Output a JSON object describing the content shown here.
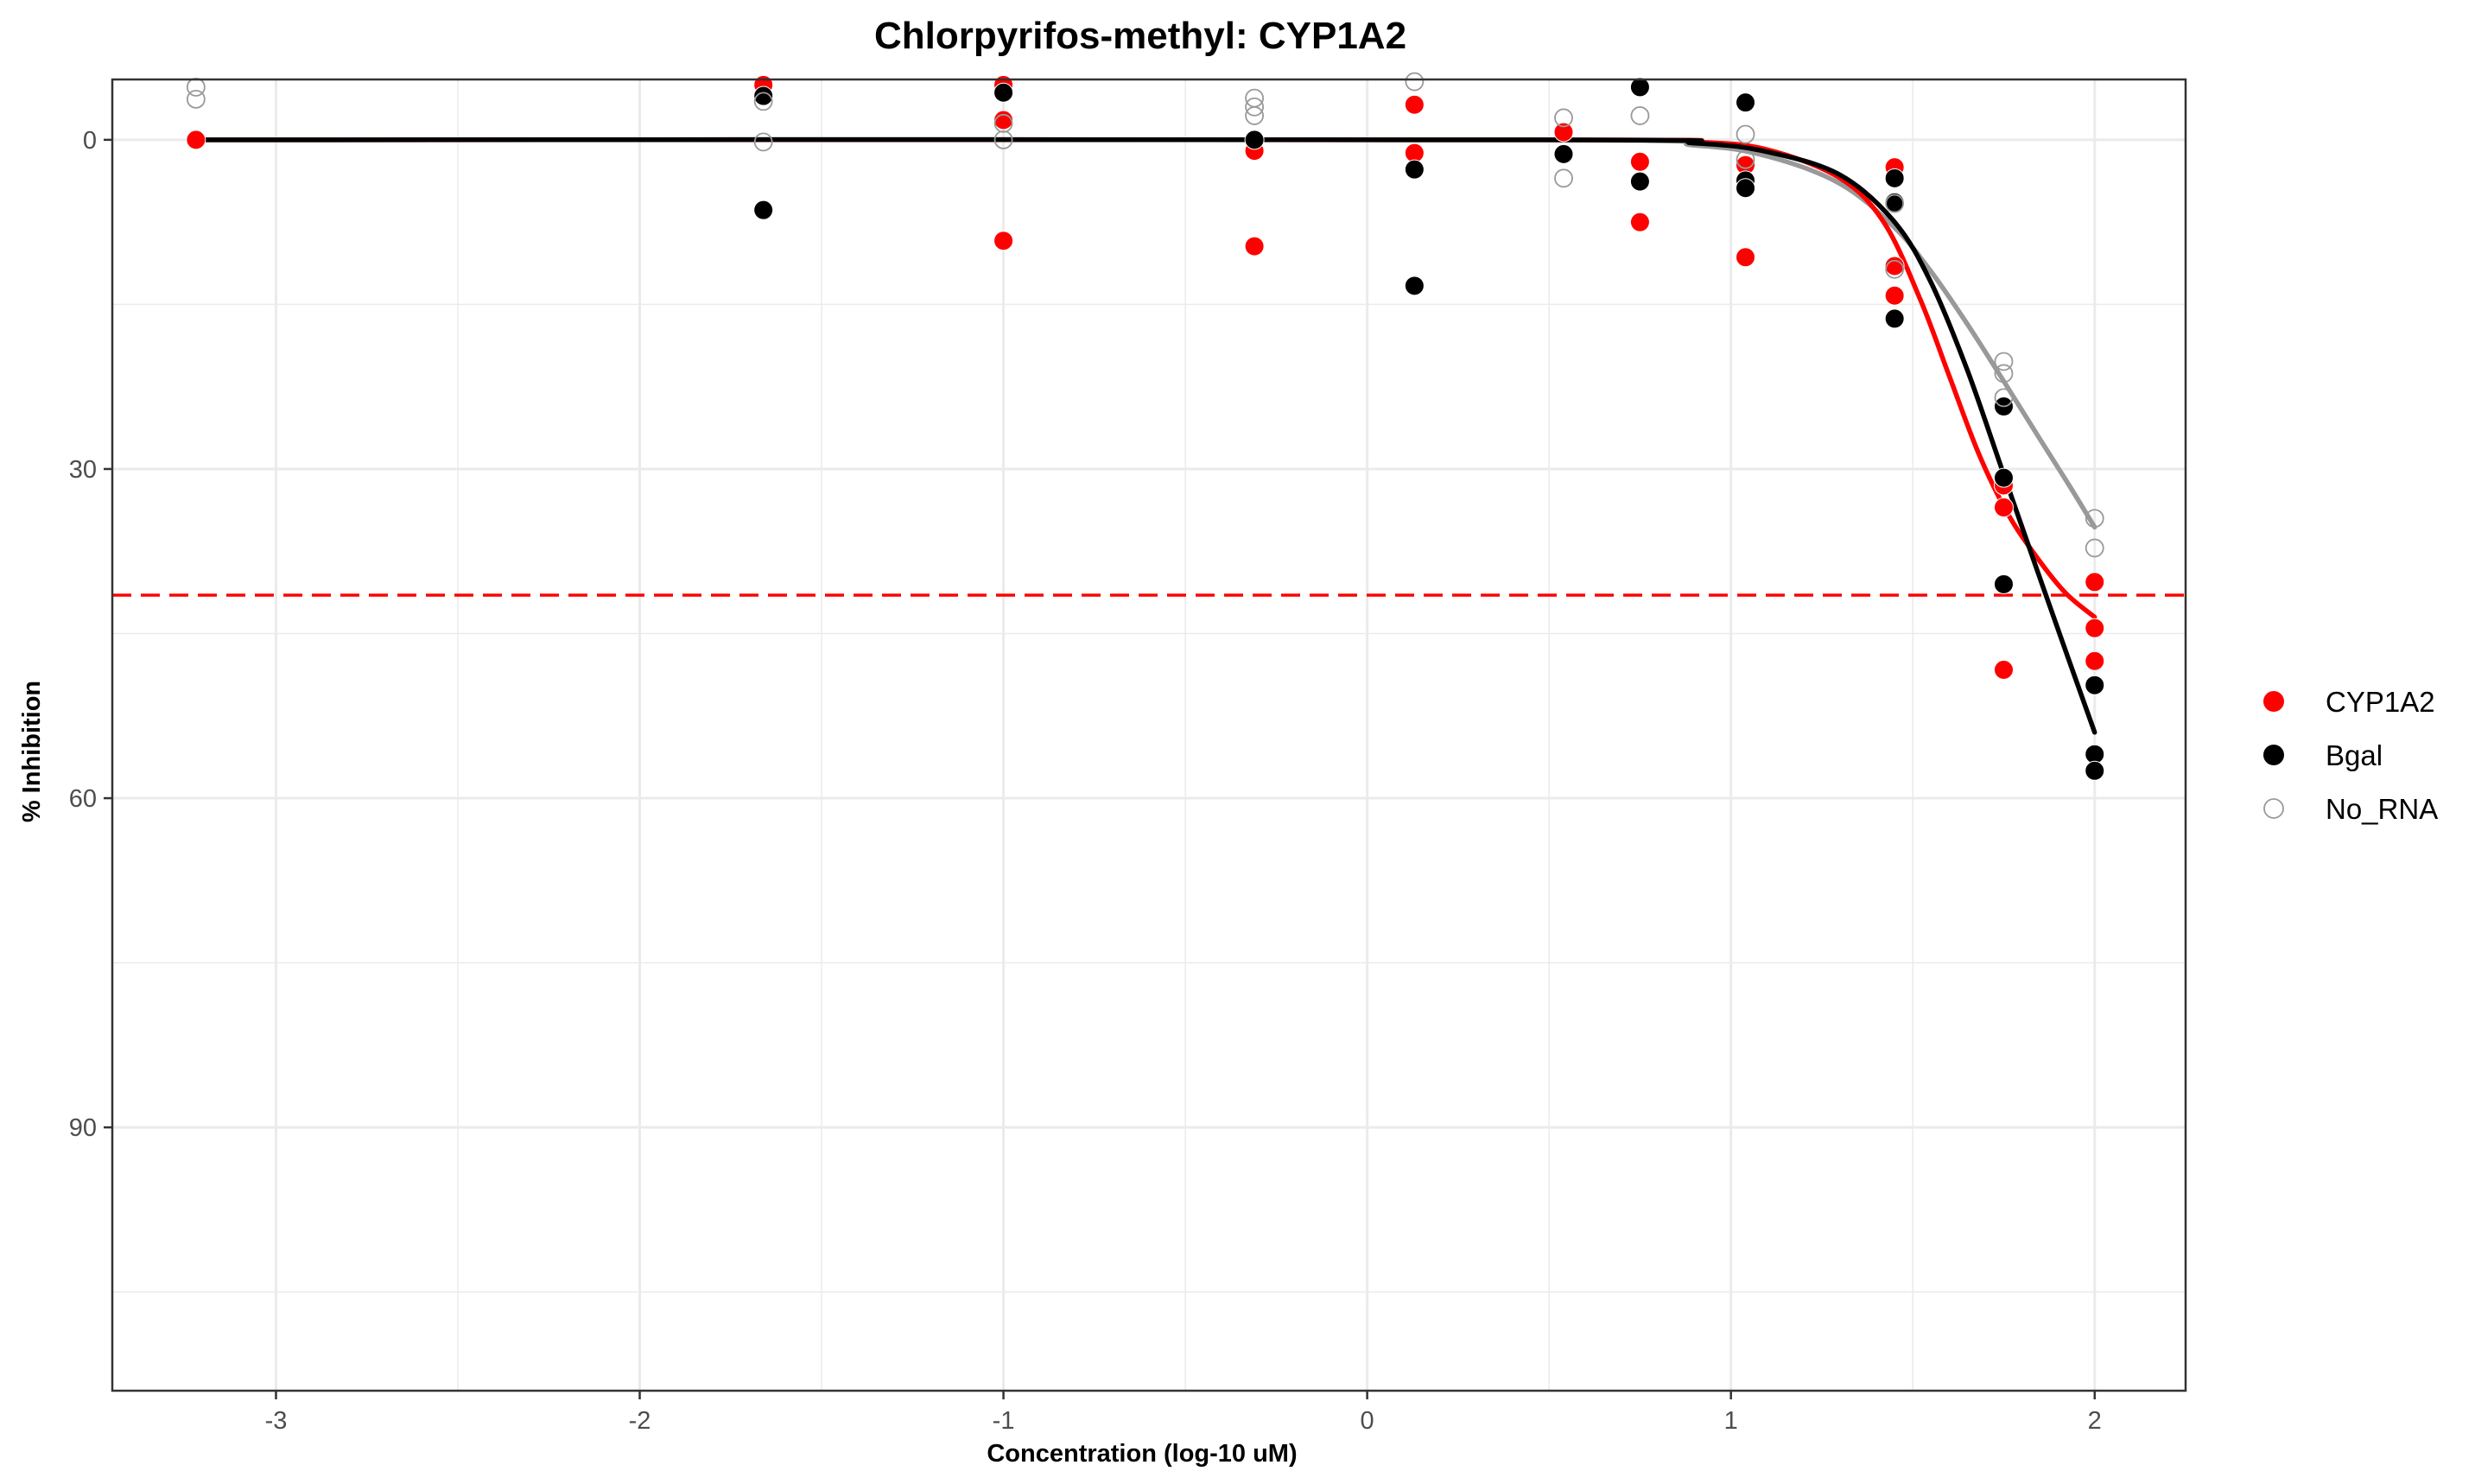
{
  "chart_data": {
    "type": "scatter",
    "title": "Chlorpyrifos-methyl: CYP1A2",
    "xlabel": "Concentration (log-10 uM)",
    "ylabel": "% Inhibition",
    "xlim": [
      -3.45,
      2.25
    ],
    "ylim": [
      -5.5,
      114
    ],
    "y_reversed": true,
    "x_ticks": [
      -3,
      -2,
      -1,
      0,
      1,
      2
    ],
    "y_ticks": [
      0,
      30,
      60,
      90
    ],
    "x_tick_labels": [
      "-3",
      "-2",
      "-1",
      "0",
      "1",
      "2"
    ],
    "y_tick_labels": [
      "0",
      "30",
      "60",
      "90"
    ],
    "grid": true,
    "legend_position": "right",
    "reference_line": {
      "y": 41.5,
      "color": "#ff0000",
      "style": "dashed"
    },
    "series": [
      {
        "name": "CYP1A2",
        "color": "#ff0000",
        "marker": "filled-circle",
        "points": [
          {
            "x": -3.22,
            "y": 0.0
          },
          {
            "x": -1.66,
            "y": -5.0
          },
          {
            "x": -1.0,
            "y": -5.0
          },
          {
            "x": -1.0,
            "y": -1.8
          },
          {
            "x": -1.0,
            "y": 9.2
          },
          {
            "x": -0.31,
            "y": 1.0
          },
          {
            "x": -0.31,
            "y": 9.7
          },
          {
            "x": 0.13,
            "y": -3.2
          },
          {
            "x": 0.13,
            "y": 1.2
          },
          {
            "x": 0.54,
            "y": -0.7
          },
          {
            "x": 0.75,
            "y": 2.0
          },
          {
            "x": 0.75,
            "y": 7.5
          },
          {
            "x": 1.04,
            "y": 2.3
          },
          {
            "x": 1.04,
            "y": 10.7
          },
          {
            "x": 1.45,
            "y": 2.5
          },
          {
            "x": 1.45,
            "y": 11.5
          },
          {
            "x": 1.45,
            "y": 14.2
          },
          {
            "x": 1.75,
            "y": 31.5
          },
          {
            "x": 1.75,
            "y": 33.5
          },
          {
            "x": 1.75,
            "y": 48.3
          },
          {
            "x": 2.0,
            "y": 40.3
          },
          {
            "x": 2.0,
            "y": 44.5
          },
          {
            "x": 2.0,
            "y": 47.5
          }
        ],
        "fit": [
          {
            "x": -3.22,
            "y": 0.0
          },
          {
            "x": 0.5,
            "y": 0.0
          },
          {
            "x": 0.9,
            "y": 0.2
          },
          {
            "x": 1.1,
            "y": 0.9
          },
          {
            "x": 1.3,
            "y": 3.5
          },
          {
            "x": 1.42,
            "y": 7.5
          },
          {
            "x": 1.52,
            "y": 14.5
          },
          {
            "x": 1.6,
            "y": 21.5
          },
          {
            "x": 1.68,
            "y": 28.5
          },
          {
            "x": 1.76,
            "y": 34.0
          },
          {
            "x": 1.84,
            "y": 38.0
          },
          {
            "x": 1.92,
            "y": 41.3
          },
          {
            "x": 2.0,
            "y": 43.5
          }
        ]
      },
      {
        "name": "Bgal",
        "color": "#000000",
        "marker": "filled-circle",
        "points": [
          {
            "x": -1.66,
            "y": -4.0
          },
          {
            "x": -1.66,
            "y": 6.4
          },
          {
            "x": -1.0,
            "y": -4.3
          },
          {
            "x": -0.31,
            "y": 0.0
          },
          {
            "x": 0.13,
            "y": 2.7
          },
          {
            "x": 0.13,
            "y": 13.3
          },
          {
            "x": 0.54,
            "y": 1.3
          },
          {
            "x": 0.75,
            "y": -4.8
          },
          {
            "x": 0.75,
            "y": 3.8
          },
          {
            "x": 1.04,
            "y": -3.4
          },
          {
            "x": 1.04,
            "y": 3.7
          },
          {
            "x": 1.04,
            "y": 4.4
          },
          {
            "x": 1.45,
            "y": 3.5
          },
          {
            "x": 1.45,
            "y": 5.7
          },
          {
            "x": 1.45,
            "y": 16.3
          },
          {
            "x": 1.75,
            "y": 24.3
          },
          {
            "x": 1.75,
            "y": 30.8
          },
          {
            "x": 1.75,
            "y": 40.5
          },
          {
            "x": 2.0,
            "y": 49.7
          },
          {
            "x": 2.0,
            "y": 56.0
          },
          {
            "x": 2.0,
            "y": 57.5
          }
        ],
        "fit": [
          {
            "x": -3.22,
            "y": 0.0
          },
          {
            "x": 0.5,
            "y": 0.0
          },
          {
            "x": 0.9,
            "y": 0.3
          },
          {
            "x": 1.1,
            "y": 1.1
          },
          {
            "x": 1.3,
            "y": 3.2
          },
          {
            "x": 1.45,
            "y": 7.5
          },
          {
            "x": 1.55,
            "y": 13.0
          },
          {
            "x": 1.65,
            "y": 21.0
          },
          {
            "x": 1.75,
            "y": 30.5
          },
          {
            "x": 1.85,
            "y": 40.0
          },
          {
            "x": 1.93,
            "y": 47.5
          },
          {
            "x": 2.0,
            "y": 54.0
          }
        ]
      },
      {
        "name": "No_RNA",
        "color": "#999999",
        "marker": "open-circle",
        "points": [
          {
            "x": -3.22,
            "y": -4.8
          },
          {
            "x": -3.22,
            "y": -3.7
          },
          {
            "x": -1.66,
            "y": -3.5
          },
          {
            "x": -1.66,
            "y": 0.2
          },
          {
            "x": -1.0,
            "y": -1.5
          },
          {
            "x": -1.0,
            "y": 0.0
          },
          {
            "x": -0.31,
            "y": -3.8
          },
          {
            "x": -0.31,
            "y": -3.0
          },
          {
            "x": -0.31,
            "y": -2.2
          },
          {
            "x": 0.13,
            "y": -5.3
          },
          {
            "x": 0.54,
            "y": -2.0
          },
          {
            "x": 0.54,
            "y": 3.5
          },
          {
            "x": 0.75,
            "y": -2.2
          },
          {
            "x": 1.04,
            "y": -0.5
          },
          {
            "x": 1.04,
            "y": 1.8
          },
          {
            "x": 1.45,
            "y": 5.8
          },
          {
            "x": 1.45,
            "y": 11.8
          },
          {
            "x": 1.75,
            "y": 20.2
          },
          {
            "x": 1.75,
            "y": 21.3
          },
          {
            "x": 1.75,
            "y": 23.5
          },
          {
            "x": 2.0,
            "y": 34.5
          },
          {
            "x": 2.0,
            "y": 37.2
          }
        ],
        "fit": [
          {
            "x": -3.22,
            "y": 0.0
          },
          {
            "x": 0.45,
            "y": 0.0
          },
          {
            "x": 0.9,
            "y": 0.5
          },
          {
            "x": 1.1,
            "y": 1.5
          },
          {
            "x": 1.3,
            "y": 4.0
          },
          {
            "x": 1.45,
            "y": 8.0
          },
          {
            "x": 1.55,
            "y": 12.0
          },
          {
            "x": 1.65,
            "y": 16.8
          },
          {
            "x": 1.75,
            "y": 22.0
          },
          {
            "x": 1.85,
            "y": 27.3
          },
          {
            "x": 1.93,
            "y": 31.5
          },
          {
            "x": 2.0,
            "y": 35.3
          }
        ]
      }
    ]
  }
}
